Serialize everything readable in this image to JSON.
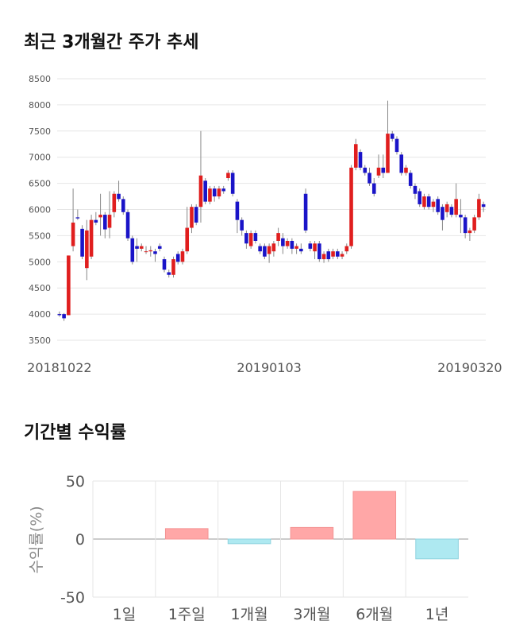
{
  "chart_data": [
    {
      "type": "candlestick",
      "title": "최근 3개월간 주가 추세",
      "categories": [
        "20181022",
        null,
        null,
        null,
        null,
        null,
        null,
        null,
        null,
        null,
        null,
        null,
        null,
        null,
        null,
        null,
        null,
        null,
        null,
        null,
        null,
        null,
        null,
        null,
        null,
        null,
        null,
        null,
        null,
        null,
        null,
        null,
        null,
        null,
        null,
        null,
        null,
        null,
        null,
        null,
        null,
        null,
        null,
        null,
        null,
        null,
        "20190103",
        null,
        null,
        null,
        null,
        null,
        null,
        null,
        null,
        null,
        null,
        null,
        null,
        null,
        null,
        null,
        null,
        null,
        null,
        null,
        null,
        null,
        null,
        null,
        null,
        null,
        null,
        null,
        null,
        null,
        null,
        null,
        null,
        null,
        null,
        null,
        null,
        null,
        null,
        null,
        null,
        null,
        null,
        null,
        "20190320",
        null,
        null,
        null
      ],
      "open": [
        4000,
        4000,
        3980,
        5300,
        5850,
        5630,
        4880,
        5100,
        5800,
        5850,
        5900,
        5650,
        5950,
        6300,
        6200,
        5950,
        5450,
        5300,
        5250,
        5200,
        5200,
        5200,
        5300,
        5050,
        4800,
        4750,
        5150,
        5000,
        5200,
        5650,
        6050,
        6050,
        6550,
        6150,
        6400,
        6250,
        6400,
        6600,
        6700,
        6150,
        5800,
        5550,
        5300,
        5550,
        5300,
        5300,
        5150,
        5200,
        5400,
        5450,
        5300,
        5400,
        5250,
        5250,
        6300,
        5350,
        5200,
        5350,
        5050,
        5200,
        5100,
        5200,
        5100,
        5200,
        5300,
        6800,
        7100,
        6800,
        6700,
        6500,
        6650,
        6800,
        6700,
        7450,
        7350,
        7050,
        6700,
        6700,
        6450,
        6350,
        6050,
        6250,
        6050,
        6200,
        6050,
        5950,
        6050,
        5900,
        5900,
        5850,
        5550,
        5600,
        5850,
        6100
      ],
      "high": [
        4050,
        4020,
        5120,
        6400,
        6000,
        5700,
        5800,
        5900,
        5950,
        6300,
        5950,
        6350,
        6350,
        6550,
        6250,
        6000,
        5500,
        5450,
        5350,
        5300,
        5300,
        5250,
        5350,
        5100,
        4850,
        5100,
        5200,
        5250,
        6050,
        6100,
        6100,
        7500,
        6600,
        6450,
        6450,
        6450,
        6450,
        6750,
        6750,
        6200,
        5850,
        5600,
        5600,
        5600,
        5350,
        5350,
        5350,
        5400,
        5650,
        5550,
        5450,
        5450,
        5350,
        5350,
        6400,
        5400,
        5400,
        5400,
        5200,
        5250,
        5250,
        5250,
        5200,
        5350,
        6850,
        7350,
        7150,
        6850,
        6800,
        6600,
        7050,
        7050,
        8080,
        7500,
        7400,
        7100,
        6850,
        6750,
        6500,
        6400,
        6300,
        6300,
        6200,
        6250,
        6100,
        6150,
        6100,
        6500,
        6200,
        5900,
        5650,
        5900,
        6300,
        6150
      ],
      "low": [
        3950,
        3870,
        3980,
        5200,
        5800,
        5050,
        4650,
        5050,
        5700,
        5500,
        5450,
        5450,
        5850,
        6150,
        5900,
        5400,
        4950,
        5000,
        5200,
        5150,
        5100,
        5000,
        5200,
        4800,
        4700,
        4700,
        4950,
        4950,
        5150,
        5550,
        5700,
        5750,
        6100,
        6100,
        6150,
        6200,
        6300,
        6550,
        6250,
        5550,
        5500,
        5250,
        5250,
        5350,
        5150,
        5050,
        4980,
        5100,
        5300,
        5150,
        5250,
        5150,
        5150,
        5150,
        5550,
        5200,
        5050,
        5000,
        4980,
        5000,
        5050,
        5050,
        5050,
        5150,
        5250,
        6750,
        6750,
        6650,
        6450,
        6250,
        6600,
        6600,
        6700,
        7300,
        7050,
        6650,
        6650,
        6400,
        6200,
        6050,
        6000,
        6000,
        5950,
        5900,
        5600,
        5850,
        5850,
        5850,
        5550,
        5450,
        5400,
        5550,
        5800,
        5950
      ],
      "close": [
        3980,
        3920,
        5120,
        5750,
        5830,
        5100,
        5600,
        5800,
        5750,
        5900,
        5620,
        5900,
        6300,
        6200,
        5950,
        5450,
        5000,
        5250,
        5300,
        5200,
        5220,
        5150,
        5250,
        4850,
        4750,
        5050,
        5000,
        5200,
        5650,
        6050,
        5750,
        6650,
        6150,
        6400,
        6250,
        6400,
        6350,
        6700,
        6300,
        5800,
        5600,
        5350,
        5550,
        5400,
        5200,
        5100,
        5300,
        5350,
        5550,
        5300,
        5400,
        5250,
        5300,
        5200,
        5600,
        5250,
        5350,
        5050,
        5150,
        5050,
        5200,
        5100,
        5150,
        5300,
        6800,
        7250,
        6800,
        6700,
        6500,
        6300,
        6800,
        6700,
        7450,
        7350,
        7100,
        6700,
        6800,
        6450,
        6300,
        6100,
        6250,
        6050,
        6150,
        5950,
        5800,
        6100,
        5900,
        6200,
        5850,
        5550,
        5600,
        5850,
        6200,
        6050
      ],
      "up_color": "#e01e1e",
      "down_color": "#1a14c8",
      "ylim": [
        3500,
        8500
      ],
      "yticks": [
        3500,
        4000,
        4500,
        5000,
        5500,
        6000,
        6500,
        7000,
        7500,
        8000,
        8500
      ],
      "grid": true
    },
    {
      "type": "bar",
      "title": "기간별 수익률",
      "ylabel": "수익률(%)",
      "categories": [
        "1일",
        "1주일",
        "1개월",
        "3개월",
        "6개월",
        "1년"
      ],
      "values": [
        0,
        9,
        -4,
        10,
        41,
        -17
      ],
      "positive_color": "#ffa7a7",
      "negative_color": "#aee9f1",
      "ylim": [
        -50,
        50
      ],
      "yticks": [
        -50,
        0,
        50
      ],
      "grid": true
    }
  ]
}
